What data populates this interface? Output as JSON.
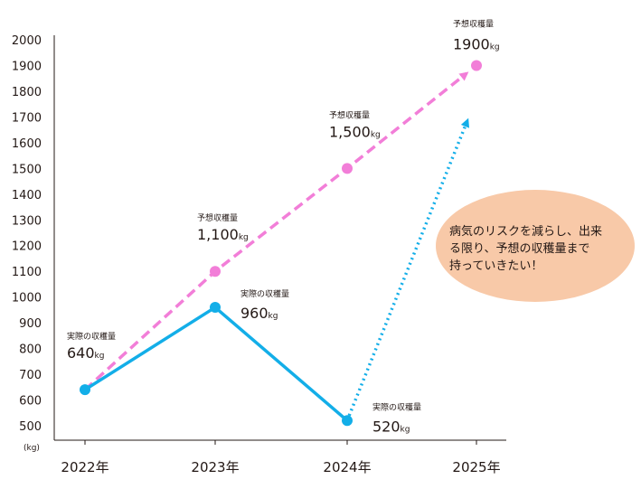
{
  "colors": {
    "actual": "#13aee8",
    "forecast": "#f27ed8",
    "axis": "#231815",
    "bubble": "#f8c9a8"
  },
  "chart_data": {
    "type": "line",
    "y_unit": "(kg)",
    "ylim": [
      500,
      2000
    ],
    "yticks": [
      500,
      600,
      700,
      800,
      900,
      1000,
      1100,
      1200,
      1300,
      1400,
      1500,
      1600,
      1700,
      1800,
      1900,
      2000
    ],
    "categories": [
      "2022年",
      "2023年",
      "2024年",
      "2025年"
    ],
    "grid": false,
    "series": [
      {
        "key": "actual",
        "style": "solid",
        "values": [
          640,
          960,
          520,
          null
        ]
      },
      {
        "key": "forecast",
        "style": "dashed",
        "values": [
          640,
          1100,
          1500,
          1900
        ]
      },
      {
        "key": "actual_to_forecast",
        "style": "dotted-arrow",
        "from": [
          "2024年",
          520
        ],
        "to": [
          "2025年",
          1700
        ]
      }
    ],
    "annotations": [
      {
        "label": "実際の収穫量",
        "value": "640",
        "unit": "kg",
        "category": "2022年",
        "y": 640,
        "side": "above-left",
        "marker": "actual"
      },
      {
        "label": "予想収穫量",
        "value": "1,100",
        "unit": "kg",
        "category": "2023年",
        "y": 1100,
        "side": "above-left",
        "marker": "forecast"
      },
      {
        "label": "実際の収穫量",
        "value": "960",
        "unit": "kg",
        "category": "2023年",
        "y": 960,
        "side": "right",
        "marker": "actual"
      },
      {
        "label": "予想収穫量",
        "value": "1,500",
        "unit": "kg",
        "category": "2024年",
        "y": 1500,
        "side": "above-left",
        "marker": "forecast"
      },
      {
        "label": "実際の収穫量",
        "value": "520",
        "unit": "kg",
        "category": "2024年",
        "y": 520,
        "side": "right",
        "marker": "actual"
      },
      {
        "label": "予想収穫量",
        "value": "1900",
        "unit": "kg",
        "category": "2025年",
        "y": 1900,
        "side": "above",
        "marker": "forecast"
      }
    ]
  },
  "callout": {
    "lines": [
      "病気のリスクを減らし、出来",
      "る限り、予想の収穫量まで",
      "持っていきたい！"
    ]
  }
}
